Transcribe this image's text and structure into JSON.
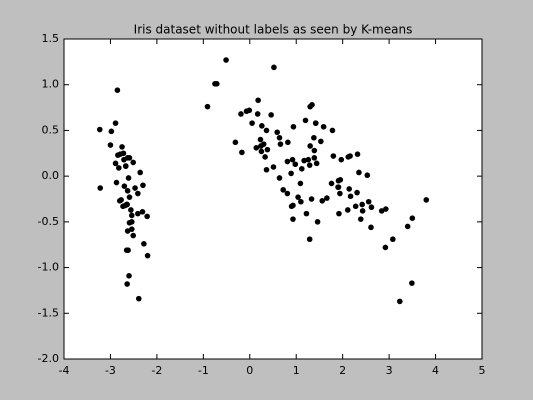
{
  "chart_data": {
    "type": "scatter",
    "title": "Iris dataset without labels as seen by K-means",
    "x": [
      -2.68,
      -2.71,
      -2.89,
      -2.75,
      -2.73,
      -2.28,
      -2.82,
      -2.63,
      -2.89,
      -2.67,
      -2.51,
      -2.61,
      -2.79,
      -3.23,
      -2.64,
      -2.39,
      -2.62,
      -2.65,
      -2.2,
      -2.59,
      -2.31,
      -2.54,
      -3.22,
      -2.3,
      -2.36,
      -2.51,
      -2.47,
      -2.56,
      -2.64,
      -2.63,
      -2.59,
      -2.41,
      -2.65,
      -2.6,
      -2.67,
      -2.87,
      -2.63,
      -2.8,
      -2.98,
      -2.59,
      -2.77,
      -2.85,
      -3,
      -2.41,
      -2.21,
      -2.72,
      -2.54,
      -2.84,
      -2.54,
      -2.7,
      1.29,
      0.93,
      1.46,
      0.18,
      1.09,
      0.64,
      1.1,
      -0.75,
      1.04,
      -0.01,
      -0.51,
      0.51,
      0.26,
      0.98,
      -0.17,
      0.93,
      0.66,
      0.24,
      0.94,
      0.05,
      1.12,
      0.36,
      1.3,
      0.92,
      0.72,
      0.9,
      1.33,
      1.56,
      0.81,
      -0.31,
      -0.07,
      -0.19,
      0.14,
      1.38,
      0.59,
      0.81,
      1.22,
      0.82,
      0.25,
      0.17,
      0.46,
      0.89,
      0.23,
      -0.71,
      0.36,
      0.33,
      0.38,
      0.64,
      -0.91,
      0.3,
      2.53,
      1.42,
      2.62,
      1.97,
      2.35,
      3.4,
      0.52,
      2.93,
      2.32,
      2.92,
      1.66,
      1.8,
      2.17,
      1.34,
      1.59,
      1.91,
      1.95,
      3.49,
      3.8,
      1.3,
      2.43,
      1.2,
      3.5,
      1.39,
      2.28,
      2.61,
      1.26,
      1.29,
      2.12,
      2.39,
      2.84,
      3.23,
      2.16,
      1.44,
      1.78,
      3.08,
      2.14,
      1.91,
      1.17,
      2.11,
      2.31,
      1.92,
      1.42,
      2.56,
      2.42,
      1.94,
      1.53,
      1.76,
      1.9,
      1.39
    ],
    "values": [
      -0.32,
      0.18,
      0.14,
      0.32,
      -0.33,
      -0.74,
      0.09,
      -0.16,
      0.58,
      0.11,
      -0.65,
      -0.02,
      0.24,
      0.51,
      -1.18,
      -1.34,
      -0.81,
      -0.31,
      -0.87,
      -0.51,
      -0.39,
      -0.43,
      -0.13,
      -0.1,
      0.04,
      0.15,
      -0.13,
      -0.37,
      -0.31,
      0.2,
      0.2,
      -0.41,
      -0.81,
      -1.09,
      0.11,
      -0.07,
      -0.6,
      -0.27,
      0.49,
      -0.23,
      -0.26,
      0.94,
      0.34,
      -0.19,
      -0.44,
      0.25,
      -0.5,
      0.23,
      -0.58,
      -0.11,
      -0.69,
      -0.32,
      -0.5,
      0.83,
      -0.08,
      0.42,
      -0.28,
      1.01,
      -0.23,
      0.72,
      1.27,
      0.1,
      0.55,
      0.13,
      0.26,
      -0.47,
      0.35,
      0.33,
      0.54,
      0.58,
      0.08,
      0.07,
      0.33,
      0.18,
      -0.15,
      -0.33,
      -0.25,
      -0.27,
      0.16,
      0.37,
      0.71,
      0.68,
      0.31,
      0.42,
      0.48,
      -0.19,
      -0.41,
      0.37,
      0.27,
      0.68,
      0.67,
      0.03,
      0.4,
      1.01,
      0.5,
      0.21,
      0.29,
      -0.02,
      0.76,
      0.35,
      0.01,
      0.58,
      -0.34,
      0.18,
      0.04,
      -0.55,
      1.19,
      -0.36,
      0.24,
      -0.78,
      -0.24,
      0.22,
      -0.22,
      0.78,
      0.54,
      -0.12,
      -0.04,
      -1.17,
      -0.26,
      0.76,
      -0.38,
      0.61,
      -0.46,
      0.2,
      -0.33,
      -0.56,
      0.18,
      0.12,
      0.21,
      -0.47,
      -0.38,
      -1.37,
      0.22,
      0.14,
      0.5,
      -0.69,
      -0.14,
      -0.05,
      0.17,
      -0.37,
      -0.18,
      -0.41,
      0.58,
      -0.28,
      -0.31,
      -0.19,
      0.38,
      -0.08,
      -0.12,
      0.28
    ],
    "color": "#000000",
    "xlim": [
      -4,
      5
    ],
    "xticks": [
      -4,
      -3,
      -2,
      -1,
      0,
      1,
      2,
      3,
      4,
      5
    ],
    "ylim": [
      -2,
      1.5
    ],
    "yticks": [
      {
        "value": -2,
        "label": "-2.0"
      },
      -1.5,
      {
        "value": -1,
        "label": "-1.0"
      },
      -0.5,
      {
        "value": 0,
        "label": "0.0"
      },
      0.5,
      {
        "value": 1,
        "label": "1.0"
      },
      1.5
    ]
  }
}
